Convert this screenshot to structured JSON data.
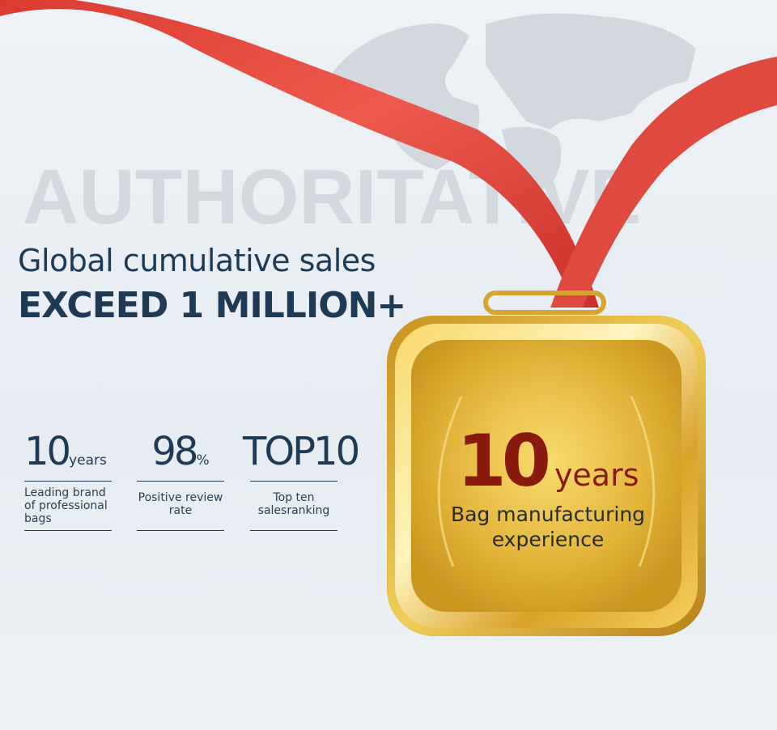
{
  "watermark": "AUTHORITATIVE",
  "headline": {
    "line1": "Global cumulative sales",
    "line2": "EXCEED 1 MILLION+"
  },
  "stats": [
    {
      "value": "10",
      "unit": "years",
      "description": "Leading brand of  professional bags"
    },
    {
      "value": "98",
      "unit": "%",
      "description": "Positive review rate"
    },
    {
      "value": "TOP10",
      "unit": "",
      "description": "Top ten salesranking"
    }
  ],
  "medal": {
    "number": "10",
    "unit": "years",
    "line1": "Bag manufacturing",
    "line2": "experience"
  },
  "colors": {
    "text": "#1f3a55",
    "ribbon": "#e2453a",
    "gold": "#e6b93a",
    "medal_text": "#8a1a0e"
  }
}
